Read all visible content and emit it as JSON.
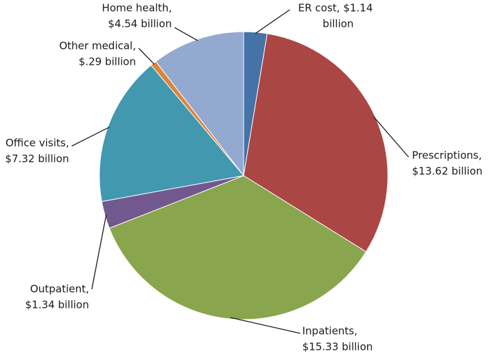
{
  "chart_data": {
    "type": "pie",
    "values": [
      1.14,
      13.62,
      15.33,
      1.34,
      7.32,
      0.29,
      4.54
    ],
    "value_labels": [
      [
        "ER cost, $1.14",
        "billion"
      ],
      [
        "Prescriptions,",
        "$13.62 billion"
      ],
      [
        "Inpatients,",
        "$15.33 billion"
      ],
      [
        "Outpatient,",
        "$1.34 billion"
      ],
      [
        "Office visits,",
        "$7.32 billion"
      ],
      [
        "Other medical,",
        "$.29 billion"
      ],
      [
        "Home health,",
        "$4.54 billion"
      ]
    ],
    "colors": [
      "#4572a7",
      "#aa4643",
      "#89a54e",
      "#71588f",
      "#4198af",
      "#db843d",
      "#93a9cf"
    ]
  }
}
